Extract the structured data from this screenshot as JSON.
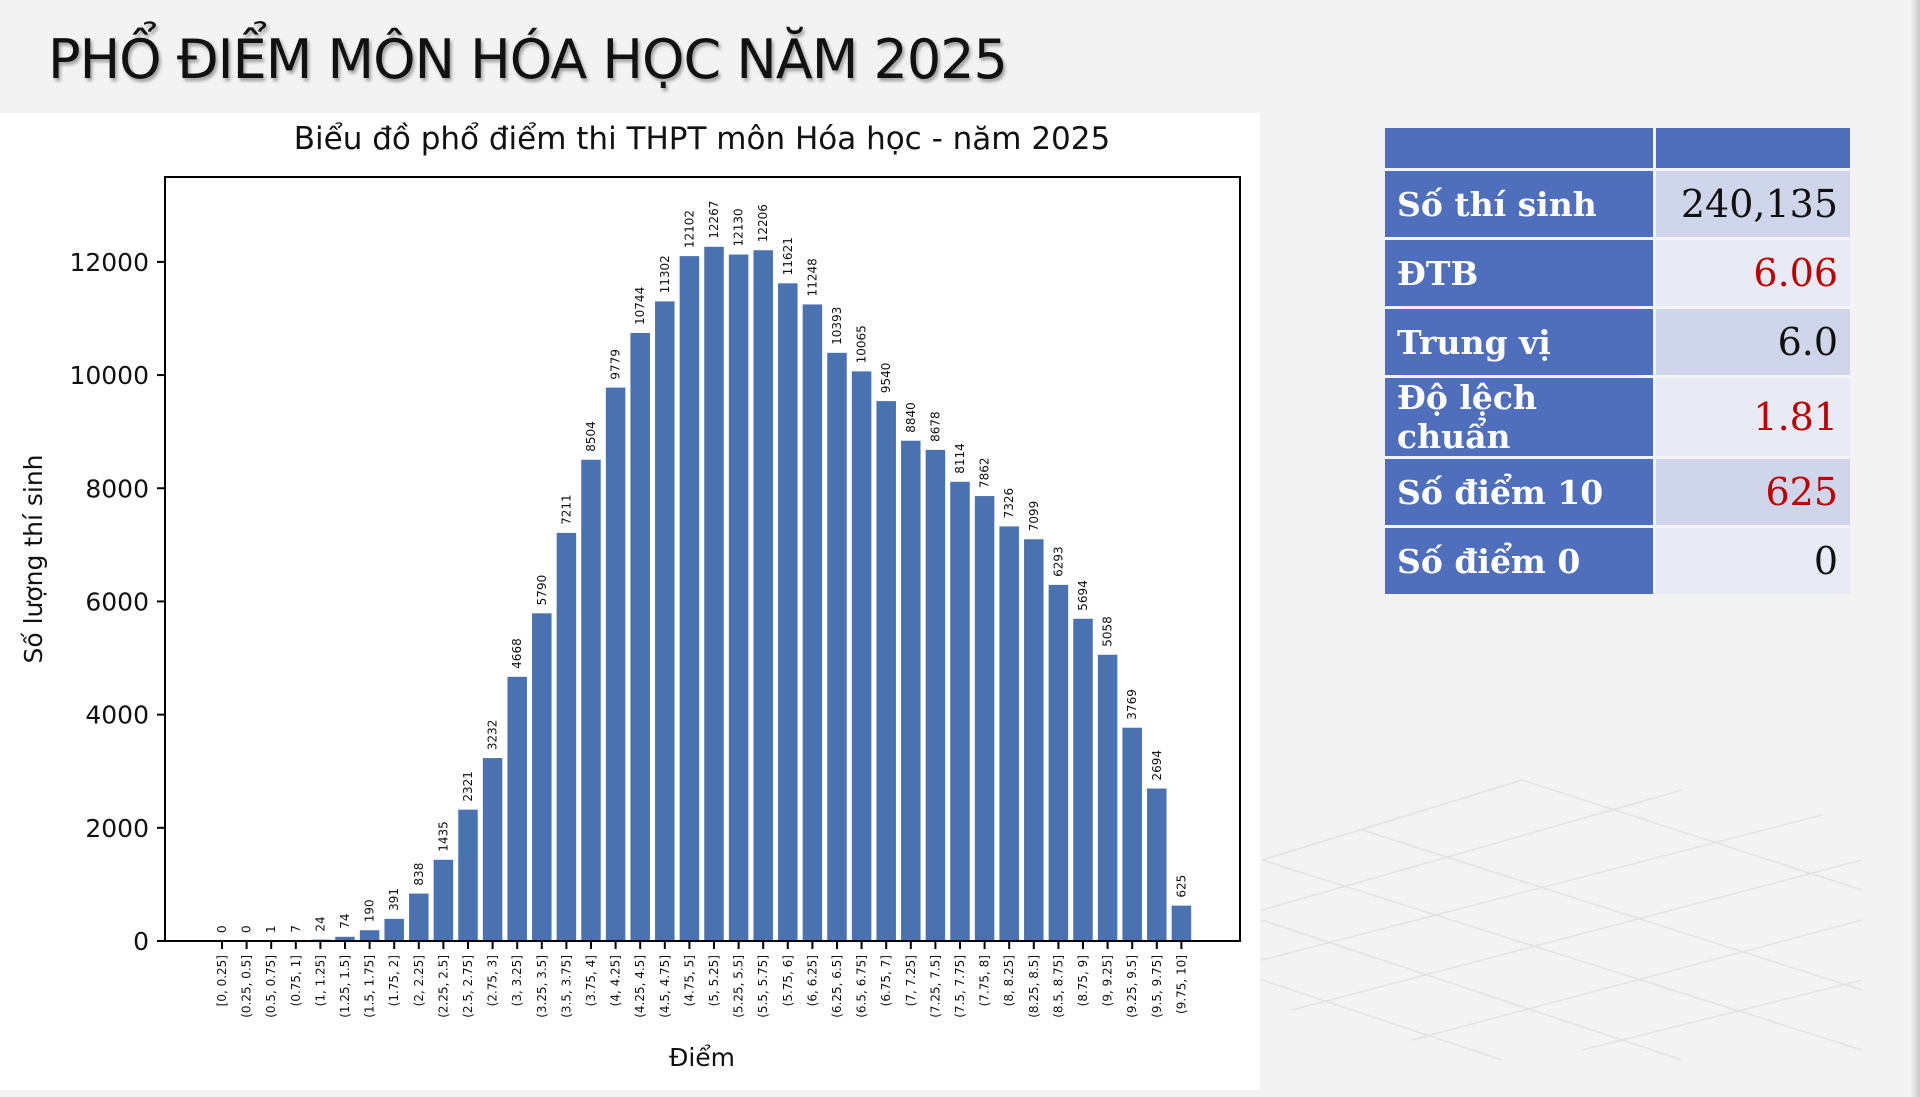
{
  "slide": {
    "title": "PHỔ ĐIỂM MÔN HÓA HỌC NĂM 2025"
  },
  "stats": {
    "rows": [
      {
        "label": "Số thí sinh",
        "value": "240,135"
      },
      {
        "label": "ĐTB",
        "value": "6.06"
      },
      {
        "label": "Trung vị",
        "value": "6.0"
      },
      {
        "label": "Độ lệch chuẩn",
        "value": "1.81"
      },
      {
        "label": "Số điểm 10",
        "value": "625"
      },
      {
        "label": "Số điểm 0",
        "value": "0"
      }
    ],
    "highlight_color": "#c00000",
    "header_color": "#4f6ebc"
  },
  "chart_data": {
    "type": "bar",
    "title": "Biểu đồ phổ điểm thi THPT môn Hóa học - năm 2025",
    "xlabel": "Điểm",
    "ylabel": "Số lượng thí sinh",
    "ylim": [
      0,
      13500
    ],
    "yticks": [
      0,
      2000,
      4000,
      6000,
      8000,
      10000,
      12000
    ],
    "grid": false,
    "bar_color": "#4a72b0",
    "categories": [
      "[0, 0.25]",
      "(0.25, 0.5]",
      "(0.5, 0.75]",
      "(0.75, 1]",
      "(1, 1.25]",
      "(1.25, 1.5]",
      "(1.5, 1.75]",
      "(1.75, 2]",
      "(2, 2.25]",
      "(2.25, 2.5]",
      "(2.5, 2.75]",
      "(2.75, 3]",
      "(3, 3.25]",
      "(3.25, 3.5]",
      "(3.5, 3.75]",
      "(3.75, 4]",
      "(4, 4.25]",
      "(4.25, 4.5]",
      "(4.5, 4.75]",
      "(4.75, 5]",
      "(5, 5.25]",
      "(5.25, 5.5]",
      "(5.5, 5.75]",
      "(5.75, 6]",
      "(6, 6.25]",
      "(6.25, 6.5]",
      "(6.5, 6.75]",
      "(6.75, 7]",
      "(7, 7.25]",
      "(7.25, 7.5]",
      "(7.5, 7.75]",
      "(7.75, 8]",
      "(8, 8.25]",
      "(8.25, 8.5]",
      "(8.5, 8.75]",
      "(8.75, 9]",
      "(9, 9.25]",
      "(9.25, 9.5]",
      "(9.5, 9.75]",
      "(9.75, 10]"
    ],
    "values": [
      0,
      0,
      1,
      7,
      24,
      74,
      190,
      391,
      838,
      1435,
      2321,
      3232,
      4668,
      5790,
      7211,
      8504,
      9779,
      10744,
      11302,
      12102,
      12267,
      12130,
      12206,
      11621,
      11248,
      10393,
      10065,
      9540,
      8840,
      8678,
      8114,
      7862,
      7326,
      7099,
      6293,
      5694,
      5058,
      3769,
      2694,
      625
    ]
  }
}
